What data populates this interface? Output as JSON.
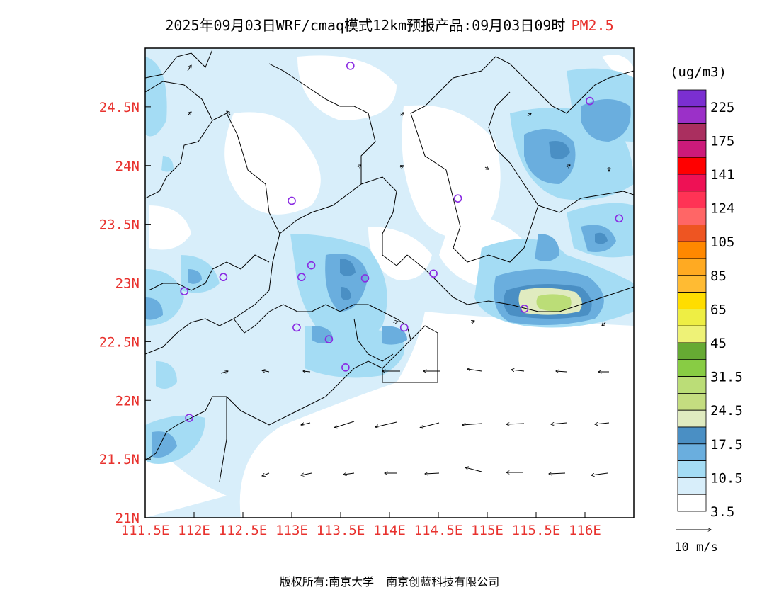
{
  "title": {
    "main": "2025年09月03日WRF/cmaq模式12km预报产品:09月03日09时",
    "variable": "PM2.5"
  },
  "chart_data": {
    "type": "heatmap",
    "title": "2025年09月03日WRF/cmaq模式12km预报产品:09月03日09时 PM2.5",
    "x_ticks": [
      "111.5E",
      "112E",
      "112.5E",
      "113E",
      "113.5E",
      "114E",
      "114.5E",
      "115E",
      "115.5E",
      "116E"
    ],
    "x_values": [
      111.5,
      112,
      112.5,
      113,
      113.5,
      114,
      114.5,
      115,
      115.5,
      116
    ],
    "y_ticks": [
      "21N",
      "21.5N",
      "22N",
      "22.5N",
      "23N",
      "23.5N",
      "24N",
      "24.5N"
    ],
    "y_values": [
      21,
      21.5,
      22,
      22.5,
      23,
      23.5,
      24,
      24.5
    ],
    "xlim": [
      111.5,
      116.5
    ],
    "ylim": [
      21,
      25
    ],
    "colorbar": {
      "unit": "(ug/m3)",
      "levels": [
        "225",
        "175",
        "141",
        "124",
        "105",
        "85",
        "65",
        "45",
        "31.5",
        "24.5",
        "17.5",
        "10.5",
        "3.5"
      ],
      "colors_top_to_bottom": [
        "#7b2fd1",
        "#9b30c8",
        "#aa2f5f",
        "#cc1a7a",
        "#ff0000",
        "#ee1155",
        "#ff3355",
        "#ff6666",
        "#ee5522",
        "#ff8800",
        "#ffaa22",
        "#ffbb33",
        "#ffdd00",
        "#eeee44",
        "#eef277",
        "#66aa33",
        "#88cc44",
        "#bbdd77",
        "#c4dd80",
        "#e0ebc0",
        "#4a8fc4",
        "#6aaede",
        "#a4dcf4",
        "#d8eefa",
        "#ffffff"
      ]
    },
    "wind_reference": "10 m/s",
    "stations": [
      {
        "lon": 113.6,
        "lat": 24.85
      },
      {
        "lon": 116.05,
        "lat": 24.55
      },
      {
        "lon": 113.0,
        "lat": 23.7
      },
      {
        "lon": 114.7,
        "lat": 23.72
      },
      {
        "lon": 116.35,
        "lat": 23.55
      },
      {
        "lon": 113.2,
        "lat": 23.15
      },
      {
        "lon": 113.1,
        "lat": 23.05
      },
      {
        "lon": 112.3,
        "lat": 23.05
      },
      {
        "lon": 113.75,
        "lat": 23.04
      },
      {
        "lon": 114.45,
        "lat": 23.08
      },
      {
        "lon": 111.9,
        "lat": 22.93
      },
      {
        "lon": 115.38,
        "lat": 22.78
      },
      {
        "lon": 113.05,
        "lat": 22.62
      },
      {
        "lon": 114.15,
        "lat": 22.62
      },
      {
        "lon": 113.38,
        "lat": 22.52
      },
      {
        "lon": 113.55,
        "lat": 22.28
      },
      {
        "lon": 111.95,
        "lat": 21.85
      }
    ],
    "hotspots": [
      {
        "lon": 115.55,
        "lat": 22.82,
        "level": "24.5"
      },
      {
        "lon": 113.6,
        "lat": 23.0,
        "level": "17.5"
      },
      {
        "lon": 115.5,
        "lat": 24.1,
        "level": "10.5"
      }
    ]
  },
  "footer": {
    "left": "版权所有:南京大学",
    "right": "南京创蓝科技有限公司"
  },
  "colors": {
    "tick_label": "#e8322e",
    "variable": "#e8322e"
  }
}
